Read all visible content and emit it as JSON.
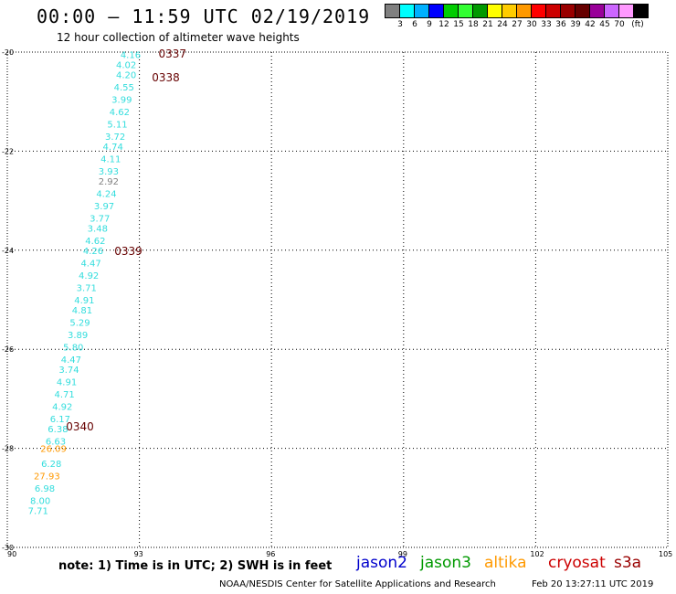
{
  "title": "00:00 — 11:59 UTC 02/19/2019",
  "subtitle": "12 hour collection of altimeter wave heights",
  "colorbar": {
    "colors": [
      "#808080",
      "#00ffff",
      "#00b0ff",
      "#0000ff",
      "#00cc00",
      "#33ff33",
      "#009900",
      "#ffff00",
      "#ffcc00",
      "#ff9900",
      "#ff0000",
      "#cc0000",
      "#990000",
      "#660000",
      "#990099",
      "#cc66ff",
      "#ff99ff",
      "#000000"
    ],
    "labels": [
      "3",
      "6",
      "9",
      "12",
      "15",
      "18",
      "21",
      "24",
      "27",
      "30",
      "33",
      "36",
      "39",
      "42",
      "45",
      "70",
      "(ft)"
    ]
  },
  "note": "note: 1) Time is in UTC; 2) SWH is in feet",
  "legend": [
    {
      "label": "jason2",
      "color": "#0000cc"
    },
    {
      "label": "jason3",
      "color": "#009900"
    },
    {
      "label": "altika",
      "color": "#ff9900"
    },
    {
      "label": "cryosat",
      "color": "#cc0000"
    },
    {
      "label": "s3a",
      "color": "#990000"
    }
  ],
  "footer_org": "NOAA/NESDIS Center for Satellite Applications and Research",
  "footer_date": "Feb 20 13:27:11 UTC 2019",
  "chart_data": {
    "type": "scatter",
    "xlim": [
      90,
      105
    ],
    "ylim": [
      -30,
      -20
    ],
    "x_ticks": [
      "90",
      "93",
      "96",
      "99",
      "102",
      "105"
    ],
    "y_ticks": [
      "-20",
      "-22",
      "-24",
      "-26",
      "-28",
      "-30"
    ],
    "grid": true,
    "swh_points": [
      {
        "lon": 92.8,
        "lat": -20.05,
        "value": "4.16",
        "color": "#33dddd"
      },
      {
        "lon": 92.7,
        "lat": -20.25,
        "value": "4.02",
        "color": "#33dddd"
      },
      {
        "lon": 92.7,
        "lat": -20.45,
        "value": "4.20",
        "color": "#33dddd"
      },
      {
        "lon": 92.65,
        "lat": -20.7,
        "value": "4.55",
        "color": "#33dddd"
      },
      {
        "lon": 92.6,
        "lat": -20.95,
        "value": "3.99",
        "color": "#33dddd"
      },
      {
        "lon": 92.55,
        "lat": -21.2,
        "value": "4.62",
        "color": "#33dddd"
      },
      {
        "lon": 92.5,
        "lat": -21.45,
        "value": "5.11",
        "color": "#33dddd"
      },
      {
        "lon": 92.45,
        "lat": -21.7,
        "value": "3.72",
        "color": "#33dddd"
      },
      {
        "lon": 92.4,
        "lat": -21.9,
        "value": "4.74",
        "color": "#33dddd"
      },
      {
        "lon": 92.35,
        "lat": -22.15,
        "value": "4.11",
        "color": "#33dddd"
      },
      {
        "lon": 92.3,
        "lat": -22.4,
        "value": "3.93",
        "color": "#33dddd"
      },
      {
        "lon": 92.3,
        "lat": -22.6,
        "value": "2.92",
        "color": "#808080"
      },
      {
        "lon": 92.25,
        "lat": -22.85,
        "value": "4.24",
        "color": "#33dddd"
      },
      {
        "lon": 92.2,
        "lat": -23.1,
        "value": "3.97",
        "color": "#33dddd"
      },
      {
        "lon": 92.1,
        "lat": -23.35,
        "value": "3.77",
        "color": "#33dddd"
      },
      {
        "lon": 92.05,
        "lat": -23.55,
        "value": "3.48",
        "color": "#33dddd"
      },
      {
        "lon": 92.0,
        "lat": -23.8,
        "value": "4.62",
        "color": "#33dddd"
      },
      {
        "lon": 91.95,
        "lat": -24.0,
        "value": "4.26",
        "color": "#33dddd"
      },
      {
        "lon": 91.9,
        "lat": -24.25,
        "value": "4.47",
        "color": "#33dddd"
      },
      {
        "lon": 91.85,
        "lat": -24.5,
        "value": "4.92",
        "color": "#33dddd"
      },
      {
        "lon": 91.8,
        "lat": -24.75,
        "value": "3.71",
        "color": "#33dddd"
      },
      {
        "lon": 91.75,
        "lat": -25.0,
        "value": "4.91",
        "color": "#33dddd"
      },
      {
        "lon": 91.7,
        "lat": -25.2,
        "value": "4.81",
        "color": "#33dddd"
      },
      {
        "lon": 91.65,
        "lat": -25.45,
        "value": "5.29",
        "color": "#33dddd"
      },
      {
        "lon": 91.6,
        "lat": -25.7,
        "value": "3.89",
        "color": "#33dddd"
      },
      {
        "lon": 91.5,
        "lat": -25.95,
        "value": "5.80",
        "color": "#33dddd"
      },
      {
        "lon": 91.45,
        "lat": -26.2,
        "value": "4.47",
        "color": "#33dddd"
      },
      {
        "lon": 91.4,
        "lat": -26.4,
        "value": "3.74",
        "color": "#33dddd"
      },
      {
        "lon": 91.35,
        "lat": -26.65,
        "value": "4.91",
        "color": "#33dddd"
      },
      {
        "lon": 91.3,
        "lat": -26.9,
        "value": "4.71",
        "color": "#33dddd"
      },
      {
        "lon": 91.25,
        "lat": -27.15,
        "value": "4.92",
        "color": "#33dddd"
      },
      {
        "lon": 91.2,
        "lat": -27.4,
        "value": "6.17",
        "color": "#33dddd"
      },
      {
        "lon": 91.15,
        "lat": -27.6,
        "value": "6.38",
        "color": "#33dddd"
      },
      {
        "lon": 91.1,
        "lat": -27.85,
        "value": "6.63",
        "color": "#33dddd"
      },
      {
        "lon": 91.05,
        "lat": -28.0,
        "value": "26.09",
        "color": "#ff9900"
      },
      {
        "lon": 91.0,
        "lat": -28.3,
        "value": "6.28",
        "color": "#33dddd"
      },
      {
        "lon": 90.9,
        "lat": -28.55,
        "value": "27.93",
        "color": "#ff9900"
      },
      {
        "lon": 90.85,
        "lat": -28.8,
        "value": "6.98",
        "color": "#33dddd"
      },
      {
        "lon": 90.75,
        "lat": -29.05,
        "value": "8.00",
        "color": "#33dddd"
      },
      {
        "lon": 90.7,
        "lat": -29.25,
        "value": "7.71",
        "color": "#33dddd"
      }
    ],
    "time_labels": [
      {
        "lon": 93.75,
        "lat": -20.02,
        "value": "0337",
        "color": "#660000"
      },
      {
        "lon": 93.6,
        "lat": -20.5,
        "value": "0338",
        "color": "#660000"
      },
      {
        "lon": 92.75,
        "lat": -24.0,
        "value": "0339",
        "color": "#660000"
      },
      {
        "lon": 91.65,
        "lat": -27.55,
        "value": "0340",
        "color": "#660000"
      }
    ]
  }
}
